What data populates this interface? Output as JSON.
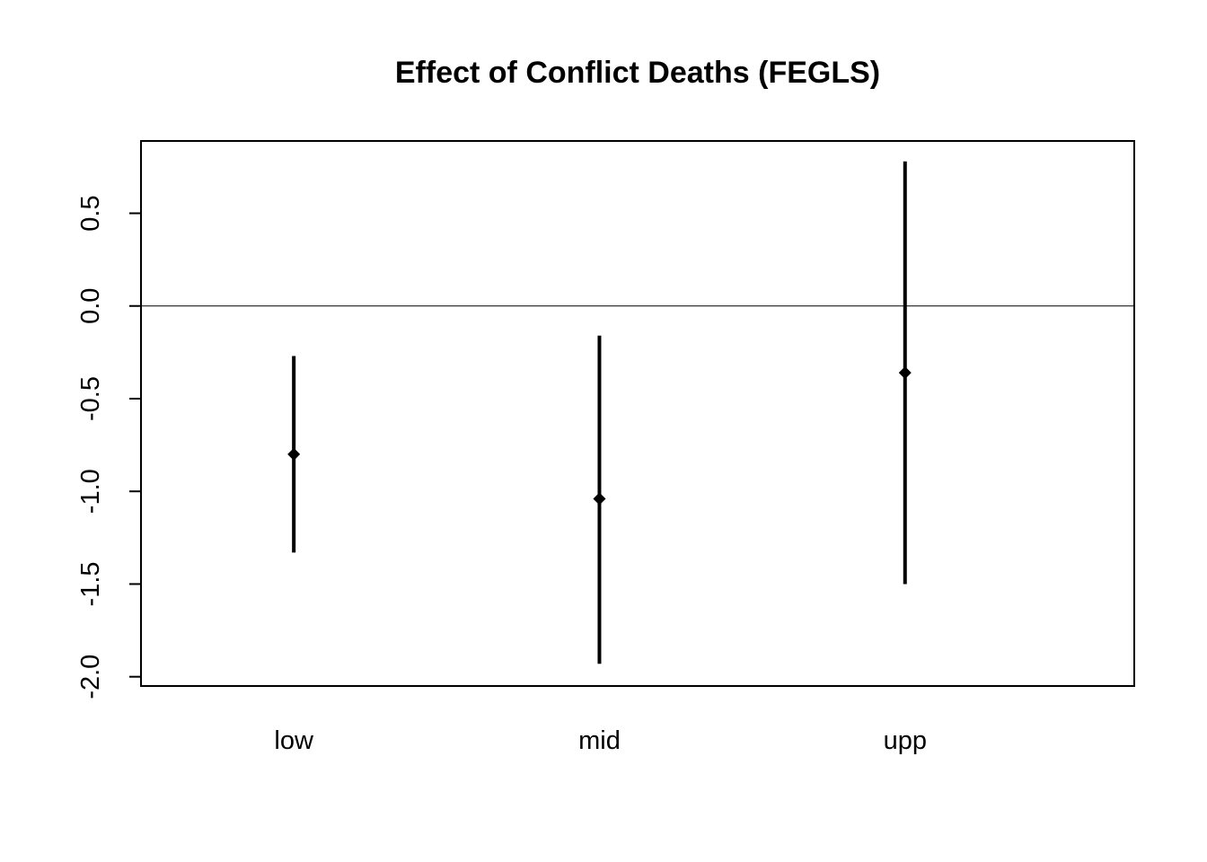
{
  "chart_data": {
    "type": "errorbar",
    "title": "Effect of Conflict Deaths (FEGLS)",
    "xlabel": "",
    "ylabel": "",
    "categories": [
      "low",
      "mid",
      "upp"
    ],
    "estimates": [
      -0.8,
      -1.04,
      -0.36
    ],
    "lower": [
      -1.33,
      -1.93,
      -1.5
    ],
    "upper": [
      -0.27,
      -0.16,
      0.78
    ],
    "reference_line": 0.0,
    "ylim": [
      -2.05,
      0.89
    ],
    "xlim": [
      0.5,
      3.75
    ],
    "y_ticks": [
      -2.0,
      -1.5,
      -1.0,
      -0.5,
      0.0,
      0.5
    ],
    "y_tick_labels": [
      "-2.0",
      "-1.5",
      "-1.0",
      "-0.5",
      "0.0",
      "0.5"
    ],
    "grid": false,
    "legend": "none",
    "colors": {
      "marks": "#000000",
      "background": "#ffffff"
    }
  }
}
